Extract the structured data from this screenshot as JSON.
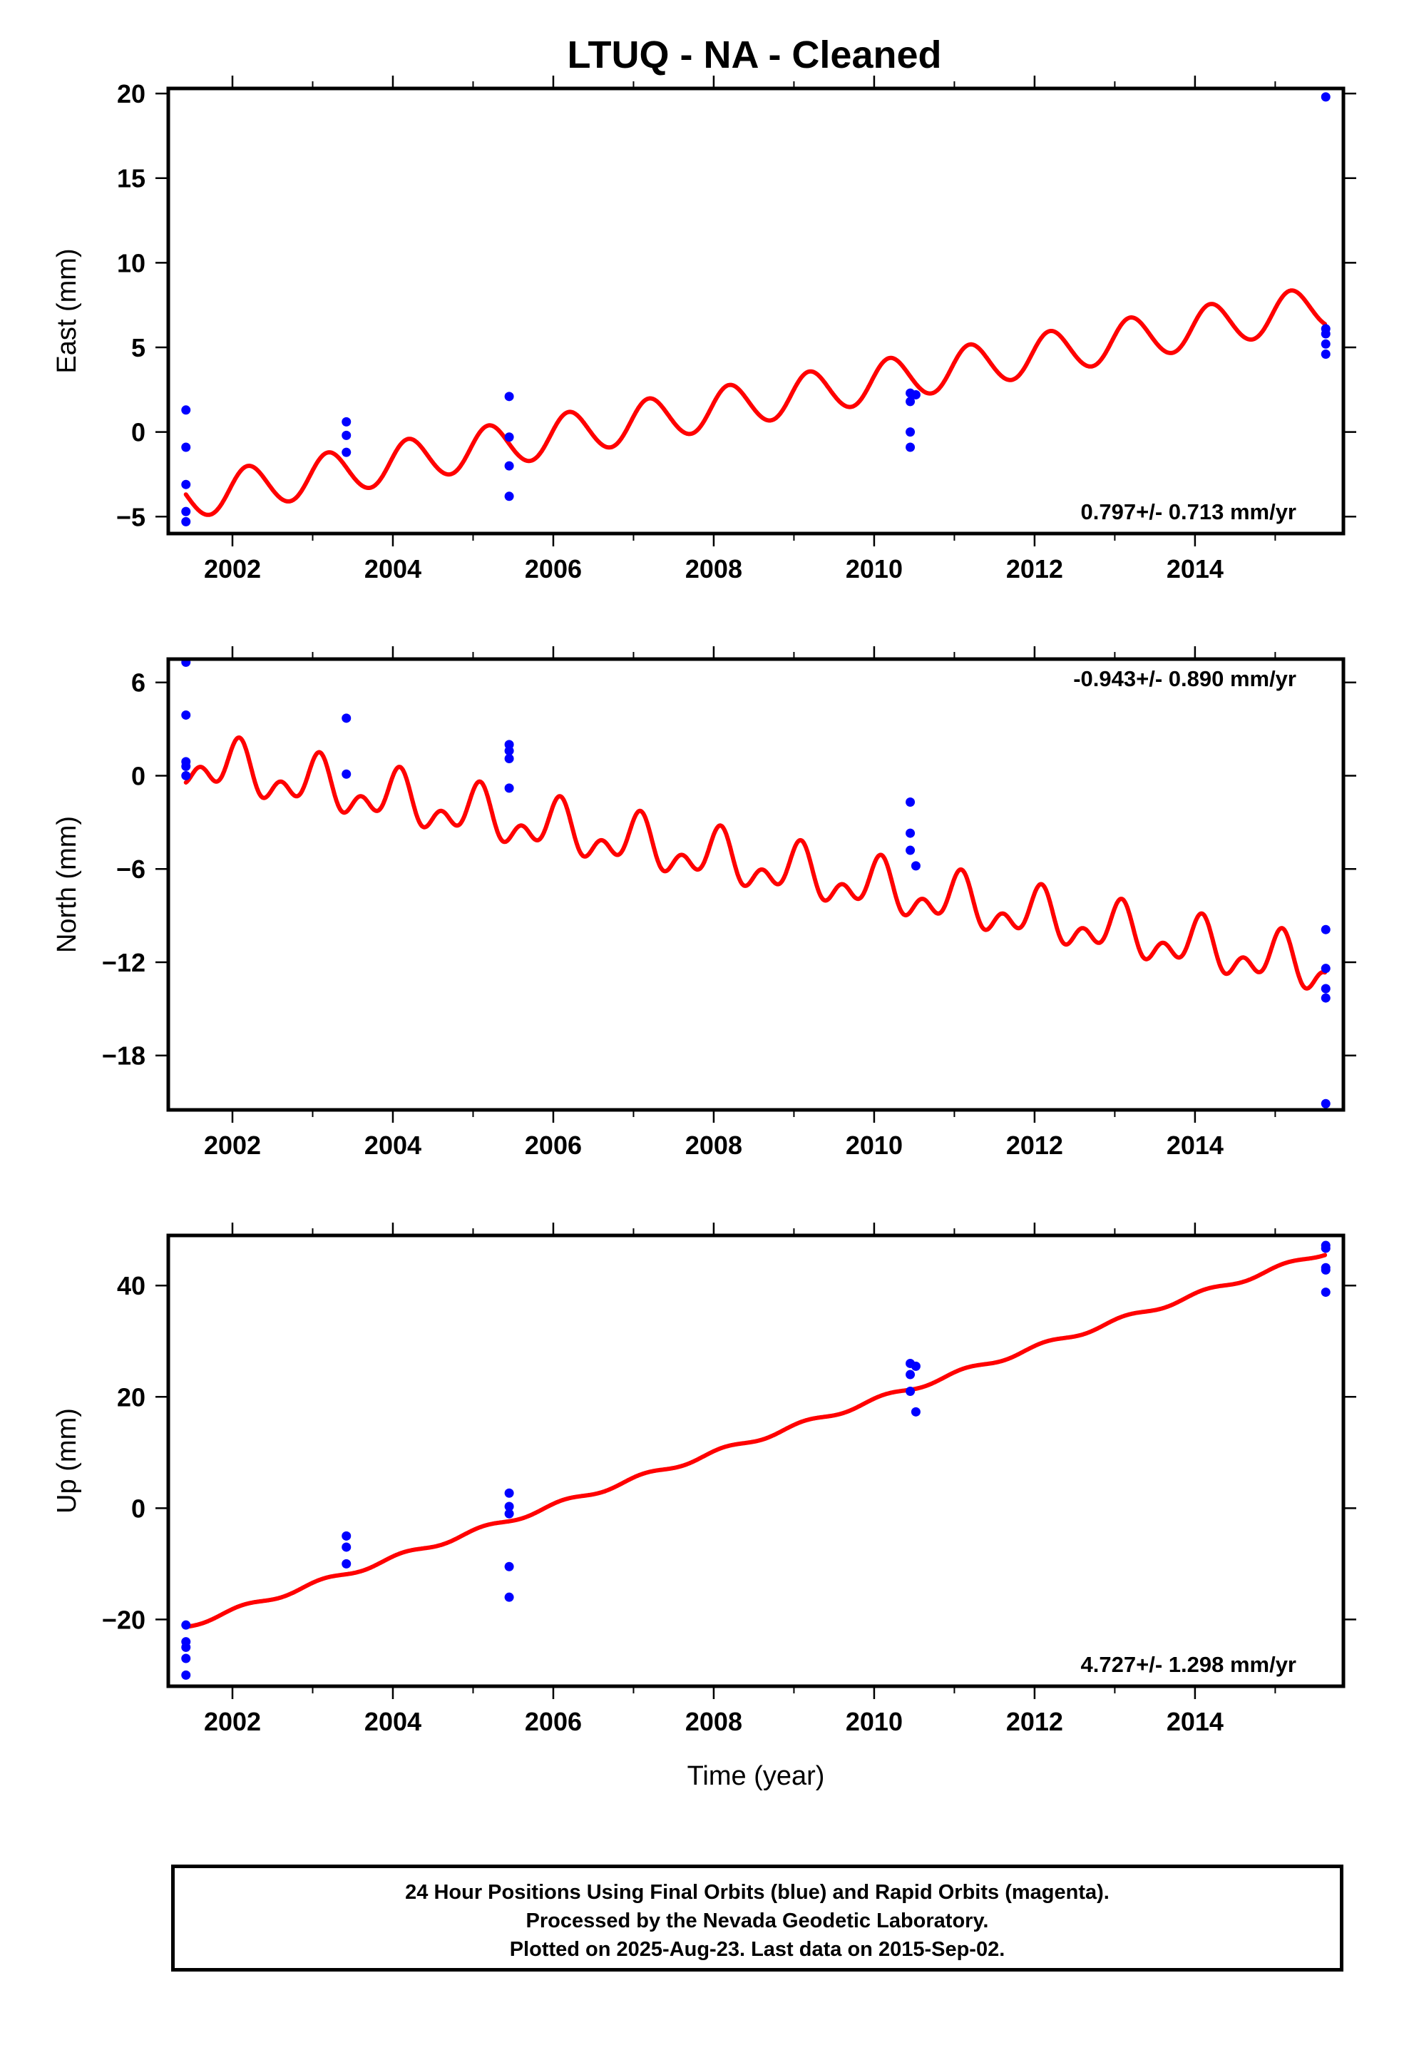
{
  "title": "LTUQ  - NA - Cleaned",
  "colors": {
    "observations": "#0000ff",
    "model": "#ff0000",
    "axes": "#000000"
  },
  "chart_data": [
    {
      "type": "scatter",
      "component": "East",
      "ylabel": "East (mm)",
      "xlabel": "",
      "xlim": [
        2001.2,
        2015.85
      ],
      "ylim": [
        -6,
        20.3
      ],
      "yticks": [
        -5,
        0,
        5,
        10,
        15,
        20
      ],
      "xticks": [
        2002,
        2004,
        2006,
        2008,
        2010,
        2012,
        2014
      ],
      "rate_label": "0.797+/- 0.713 mm/yr",
      "rate_position": "bottom-right",
      "model": {
        "name": "",
        "offset": -3.9,
        "rate": 0.797,
        "amp_annual": 1.25,
        "amp_semiannual": 0.05,
        "phase_annual": 0.3,
        "phase_semiannual": 0,
        "series_end": 2015.62
      },
      "series": [
        {
          "name": "",
          "points": [
            [
              2001.42,
              1.3
            ],
            [
              2001.42,
              -0.9
            ],
            [
              2001.42,
              -3.1
            ],
            [
              2001.42,
              -4.7
            ],
            [
              2001.42,
              -5.3
            ],
            [
              2003.42,
              0.6
            ],
            [
              2003.42,
              -0.2
            ],
            [
              2003.42,
              -1.2
            ],
            [
              2005.45,
              2.1
            ],
            [
              2005.45,
              -0.3
            ],
            [
              2005.45,
              -2.0
            ],
            [
              2005.45,
              -3.8
            ],
            [
              2010.45,
              2.3
            ],
            [
              2010.45,
              1.8
            ],
            [
              2010.45,
              0.0
            ],
            [
              2010.45,
              -0.9
            ],
            [
              2010.52,
              2.2
            ],
            [
              2015.63,
              19.8
            ],
            [
              2015.63,
              6.1
            ],
            [
              2015.63,
              5.8
            ],
            [
              2015.63,
              5.2
            ],
            [
              2015.63,
              4.6
            ]
          ]
        }
      ]
    },
    {
      "type": "scatter",
      "component": "North",
      "ylabel": "North (mm)",
      "xlabel": "",
      "xlim": [
        2001.2,
        2015.85
      ],
      "ylim": [
        -21.5,
        7.5
      ],
      "yticks": [
        -18,
        -12,
        -6,
        0,
        6
      ],
      "xticks": [
        2002,
        2004,
        2006,
        2008,
        2010,
        2012,
        2014
      ],
      "rate_label": "-0.943+/- 0.890 mm/yr",
      "rate_position": "top-right",
      "model": {
        "name": "",
        "offset": 0.9,
        "rate": -0.943,
        "amp_annual": 1.2,
        "amp_semiannual": 1.0,
        "phase_annual": 1.2,
        "phase_semiannual": 0.4,
        "series_end": 2015.62
      },
      "series": [
        {
          "name": "",
          "points": [
            [
              2001.42,
              7.3
            ],
            [
              2001.42,
              3.9
            ],
            [
              2001.42,
              0.9
            ],
            [
              2001.42,
              0.6
            ],
            [
              2001.42,
              0.0
            ],
            [
              2003.42,
              3.7
            ],
            [
              2003.42,
              0.1
            ],
            [
              2005.45,
              2.0
            ],
            [
              2005.45,
              1.6
            ],
            [
              2005.45,
              1.1
            ],
            [
              2005.45,
              -0.8
            ],
            [
              2010.45,
              -1.7
            ],
            [
              2010.45,
              -3.7
            ],
            [
              2010.45,
              -4.8
            ],
            [
              2010.52,
              -5.8
            ],
            [
              2015.63,
              -9.9
            ],
            [
              2015.63,
              -12.4
            ],
            [
              2015.63,
              -13.7
            ],
            [
              2015.63,
              -14.3
            ],
            [
              2015.63,
              -21.1
            ]
          ]
        }
      ]
    },
    {
      "type": "scatter",
      "component": "Up",
      "ylabel": "Up (mm)",
      "xlabel": "Time (year)",
      "xlim": [
        2001.2,
        2015.85
      ],
      "ylim": [
        -32,
        49
      ],
      "yticks": [
        -20,
        0,
        20,
        40
      ],
      "xticks": [
        2002,
        2004,
        2006,
        2008,
        2010,
        2012,
        2014
      ],
      "rate_label": "4.727+/- 1.298 mm/yr",
      "rate_position": "bottom-right",
      "model": {
        "name": "",
        "offset": -21.2,
        "rate": 4.727,
        "amp_annual": 0.45,
        "amp_semiannual": 0.0,
        "phase_annual": 0.8,
        "phase_semiannual": 0,
        "series_end": 2015.62
      },
      "series": [
        {
          "name": "",
          "points": [
            [
              2001.42,
              -21.0
            ],
            [
              2001.42,
              -24.0
            ],
            [
              2001.42,
              -25.0
            ],
            [
              2001.42,
              -27.0
            ],
            [
              2001.42,
              -30.0
            ],
            [
              2003.42,
              -5.0
            ],
            [
              2003.42,
              -7.0
            ],
            [
              2003.42,
              -10.0
            ],
            [
              2005.45,
              2.7
            ],
            [
              2005.45,
              0.3
            ],
            [
              2005.45,
              -1.0
            ],
            [
              2005.45,
              -10.5
            ],
            [
              2005.45,
              -16.0
            ],
            [
              2010.45,
              26.0
            ],
            [
              2010.45,
              24.0
            ],
            [
              2010.45,
              21.0
            ],
            [
              2010.52,
              25.5
            ],
            [
              2010.52,
              17.3
            ],
            [
              2015.63,
              47.2
            ],
            [
              2015.63,
              46.7
            ],
            [
              2015.63,
              43.2
            ],
            [
              2015.63,
              42.8
            ],
            [
              2015.63,
              38.8
            ]
          ]
        }
      ]
    }
  ],
  "footer": {
    "line1": "24 Hour Positions Using Final Orbits (blue) and Rapid Orbits (magenta).",
    "line2": "Processed by the Nevada Geodetic Laboratory.",
    "line3": "Plotted on 2025-Aug-23. Last data on 2015-Sep-02."
  }
}
